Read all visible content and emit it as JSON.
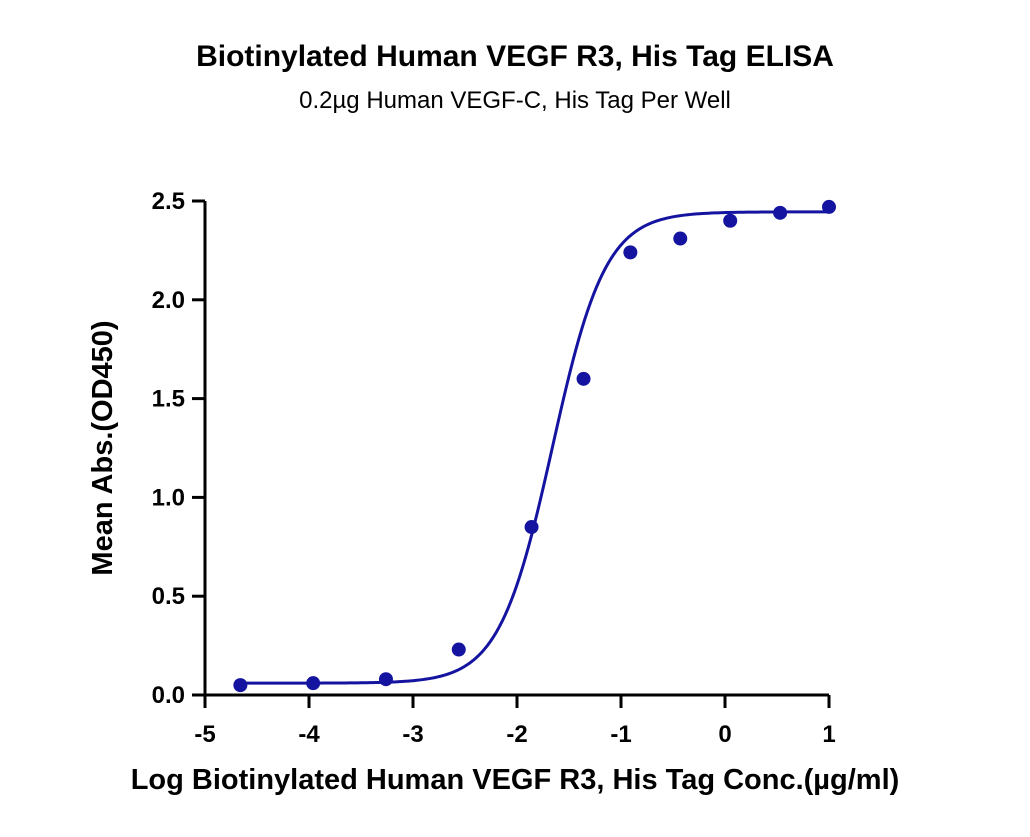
{
  "chart_data": {
    "type": "scatter",
    "title": "Biotinylated Human VEGF R3, His Tag ELISA",
    "subtitle": "0.2µg Human VEGF-C, His Tag Per Well",
    "xlabel": "Log Biotinylated Human VEGF R3, His Tag Conc.(µg/ml)",
    "ylabel": "Mean Abs.(OD450)",
    "xlim": [
      -5,
      1
    ],
    "ylim": [
      0,
      2.5
    ],
    "xticks": [
      -5,
      -4,
      -3,
      -2,
      -1,
      0,
      1
    ],
    "yticks": [
      0.0,
      0.5,
      1.0,
      1.5,
      2.0,
      2.5
    ],
    "xtick_labels": [
      "-5",
      "-4",
      "-3",
      "-2",
      "-1",
      "0",
      "1"
    ],
    "ytick_labels": [
      "0.0",
      "0.5",
      "1.0",
      "1.5",
      "2.0",
      "2.5"
    ],
    "grid": false,
    "series": [
      {
        "color": "#1414a0",
        "x": [
          -4.66,
          -3.96,
          -3.26,
          -2.56,
          -1.86,
          -1.36,
          -0.91,
          -0.43,
          0.05,
          0.53,
          1.0
        ],
        "y": [
          0.05,
          0.06,
          0.08,
          0.23,
          0.85,
          1.6,
          2.24,
          2.31,
          2.4,
          2.44,
          2.47
        ]
      }
    ],
    "fit_curve": {
      "model": "4PL",
      "bottom": 0.06,
      "top": 2.445,
      "log_ec50": -1.66,
      "hill": 1.7,
      "color": "#1414a0"
    }
  }
}
